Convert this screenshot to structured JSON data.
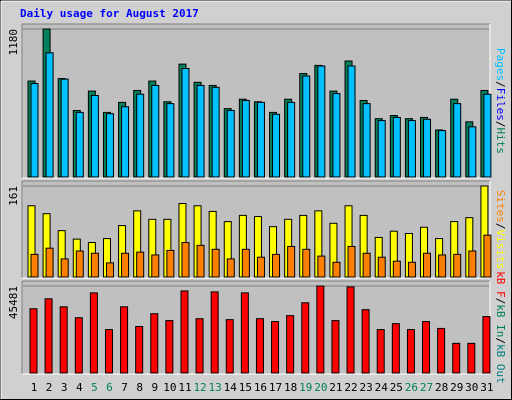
{
  "chart_data": [
    {
      "type": "bar",
      "title": "Daily usage for August 2017",
      "ylim": [
        0,
        1180
      ],
      "yticks": [
        1180
      ],
      "grid": true,
      "axis_label_parts": [
        {
          "text": "Pages",
          "color": "#00c0ff"
        },
        {
          "text": "/",
          "color": "#000000"
        },
        {
          "text": "Files",
          "color": "#0000ff"
        },
        {
          "text": "/",
          "color": "#000000"
        },
        {
          "text": "Hits",
          "color": "#00805c"
        }
      ],
      "series": [
        {
          "name": "Hits",
          "color": "#00805c",
          "values": [
            765,
            1180,
            785,
            530,
            685,
            515,
            595,
            690,
            765,
            600,
            900,
            755,
            730,
            545,
            620,
            600,
            515,
            620,
            825,
            890,
            685,
            925,
            610,
            465,
            490,
            465,
            475,
            375,
            620,
            440,
            690
          ]
        },
        {
          "name": "Pages",
          "color": "#00c0ff",
          "values": [
            745,
            990,
            780,
            515,
            650,
            505,
            560,
            660,
            730,
            585,
            865,
            730,
            715,
            530,
            610,
            595,
            500,
            595,
            805,
            885,
            665,
            885,
            585,
            450,
            475,
            450,
            460,
            370,
            585,
            400,
            660
          ]
        }
      ]
    },
    {
      "type": "bar",
      "ylim": [
        0,
        161
      ],
      "yticks": [
        161
      ],
      "grid": true,
      "axis_label_parts": [
        {
          "text": "Sites",
          "color": "#ff8000"
        },
        {
          "text": "/",
          "color": "#000000"
        },
        {
          "text": "Visits",
          "color": "#ffff00"
        }
      ],
      "series": [
        {
          "name": "Visits",
          "color": "#ffff00",
          "values": [
            126,
            112,
            82,
            67,
            61,
            68,
            91,
            117,
            102,
            102,
            130,
            126,
            116,
            98,
            109,
            107,
            89,
            102,
            109,
            117,
            95,
            126,
            109,
            70,
            81,
            77,
            88,
            68,
            98,
            105,
            161
          ]
        },
        {
          "name": "Sites",
          "color": "#ff8000",
          "values": [
            40,
            51,
            32,
            46,
            42,
            25,
            42,
            44,
            39,
            47,
            61,
            56,
            49,
            32,
            49,
            35,
            40,
            54,
            49,
            37,
            26,
            54,
            42,
            35,
            28,
            26,
            42,
            39,
            40,
            46,
            74
          ]
        }
      ]
    },
    {
      "type": "bar",
      "ylim": [
        0,
        45481
      ],
      "yticks": [
        45481
      ],
      "grid": true,
      "axis_label_parts": [
        {
          "text": "kB F",
          "color": "#ff0000"
        },
        {
          "text": "/",
          "color": "#000000"
        },
        {
          "text": "kB In",
          "color": "#00805c"
        },
        {
          "text": "/",
          "color": "#000000"
        },
        {
          "text": "kB Out",
          "color": "#008080"
        }
      ],
      "categories": [
        "1",
        "2",
        "3",
        "4",
        "5",
        "6",
        "7",
        "8",
        "9",
        "10",
        "11",
        "12",
        "13",
        "14",
        "15",
        "16",
        "17",
        "18",
        "19",
        "20",
        "21",
        "22",
        "23",
        "24",
        "25",
        "26",
        "27",
        "28",
        "29",
        "30",
        "31"
      ],
      "weekend_indices": [
        4,
        5,
        11,
        12,
        18,
        19,
        25,
        26
      ],
      "weekend_color": "#00805c",
      "label_color": "#000000",
      "series": [
        {
          "name": "kB F",
          "color": "#ff0000",
          "values": [
            33600,
            38800,
            34600,
            28900,
            41900,
            22700,
            34600,
            24300,
            31000,
            27400,
            42900,
            28400,
            42400,
            27900,
            41900,
            28400,
            26900,
            30000,
            36700,
            45481,
            27400,
            45000,
            33100,
            22700,
            25800,
            22700,
            26900,
            23300,
            15500,
            15500,
            29500
          ]
        }
      ]
    }
  ]
}
